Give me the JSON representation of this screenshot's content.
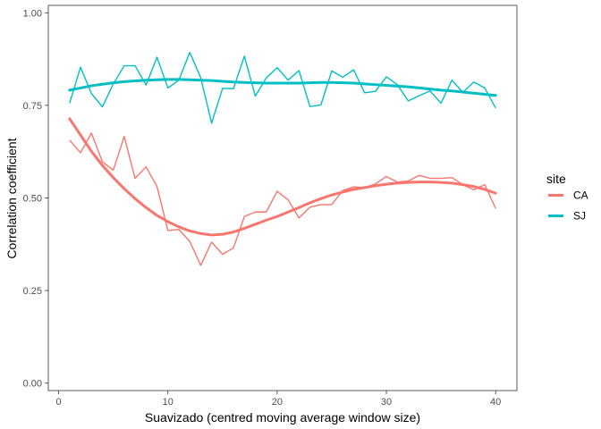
{
  "chart_data": {
    "type": "line",
    "xlabel": "Suavizado (centred moving average window size)",
    "ylabel": "Correlation coefficient",
    "xlim": [
      -0.95,
      41.95
    ],
    "ylim": [
      -0.02,
      1.02
    ],
    "x_ticks": [
      0,
      10,
      20,
      30,
      40
    ],
    "x_tick_labels": [
      "0",
      "10",
      "20",
      "30",
      "40"
    ],
    "y_ticks": [
      0,
      0.25,
      0.5,
      0.75,
      1.0
    ],
    "y_tick_labels": [
      "0.00",
      "0.25",
      "0.50",
      "0.75",
      "1.00"
    ],
    "grid": false,
    "legend": {
      "title": "site",
      "position": "right"
    },
    "series": [
      {
        "name": "CA",
        "color": "#F8766D",
        "x": [
          1,
          2,
          3,
          4,
          5,
          6,
          7,
          8,
          9,
          10,
          11,
          12,
          13,
          14,
          15,
          16,
          17,
          18,
          19,
          20,
          21,
          22,
          23,
          24,
          25,
          26,
          27,
          28,
          29,
          30,
          31,
          32,
          33,
          34,
          35,
          36,
          37,
          38,
          39,
          40
        ],
        "values": [
          0.656,
          0.622,
          0.675,
          0.598,
          0.575,
          0.666,
          0.553,
          0.584,
          0.531,
          0.412,
          0.415,
          0.383,
          0.318,
          0.381,
          0.348,
          0.365,
          0.45,
          0.462,
          0.462,
          0.518,
          0.495,
          0.446,
          0.475,
          0.482,
          0.482,
          0.52,
          0.53,
          0.528,
          0.538,
          0.558,
          0.543,
          0.546,
          0.561,
          0.553,
          0.553,
          0.555,
          0.536,
          0.522,
          0.536,
          0.472
        ],
        "smooth": [
          0.714,
          0.67,
          0.626,
          0.588,
          0.555,
          0.525,
          0.498,
          0.474,
          0.453,
          0.436,
          0.422,
          0.411,
          0.404,
          0.4,
          0.402,
          0.408,
          0.418,
          0.429,
          0.44,
          0.45,
          0.462,
          0.474,
          0.487,
          0.498,
          0.508,
          0.516,
          0.523,
          0.528,
          0.533,
          0.537,
          0.54,
          0.542,
          0.543,
          0.543,
          0.542,
          0.54,
          0.536,
          0.531,
          0.523,
          0.513
        ]
      },
      {
        "name": "SJ",
        "color": "#00BFC4",
        "x": [
          1,
          2,
          3,
          4,
          5,
          6,
          7,
          8,
          9,
          10,
          11,
          12,
          13,
          14,
          15,
          16,
          17,
          18,
          19,
          20,
          21,
          22,
          23,
          24,
          25,
          26,
          27,
          28,
          29,
          30,
          31,
          32,
          33,
          34,
          35,
          36,
          37,
          38,
          39,
          40
        ],
        "values": [
          0.756,
          0.853,
          0.782,
          0.746,
          0.808,
          0.857,
          0.857,
          0.805,
          0.88,
          0.797,
          0.818,
          0.893,
          0.825,
          0.702,
          0.796,
          0.795,
          0.883,
          0.775,
          0.824,
          0.852,
          0.818,
          0.844,
          0.747,
          0.751,
          0.843,
          0.826,
          0.846,
          0.784,
          0.788,
          0.827,
          0.806,
          0.762,
          0.776,
          0.789,
          0.756,
          0.818,
          0.785,
          0.813,
          0.797,
          0.743
        ],
        "smooth": [
          0.791,
          0.797,
          0.803,
          0.807,
          0.811,
          0.814,
          0.816,
          0.818,
          0.819,
          0.82,
          0.82,
          0.819,
          0.818,
          0.817,
          0.815,
          0.813,
          0.812,
          0.811,
          0.81,
          0.81,
          0.81,
          0.81,
          0.811,
          0.812,
          0.812,
          0.811,
          0.81,
          0.808,
          0.806,
          0.804,
          0.802,
          0.8,
          0.797,
          0.794,
          0.791,
          0.789,
          0.786,
          0.783,
          0.78,
          0.777
        ]
      }
    ]
  }
}
